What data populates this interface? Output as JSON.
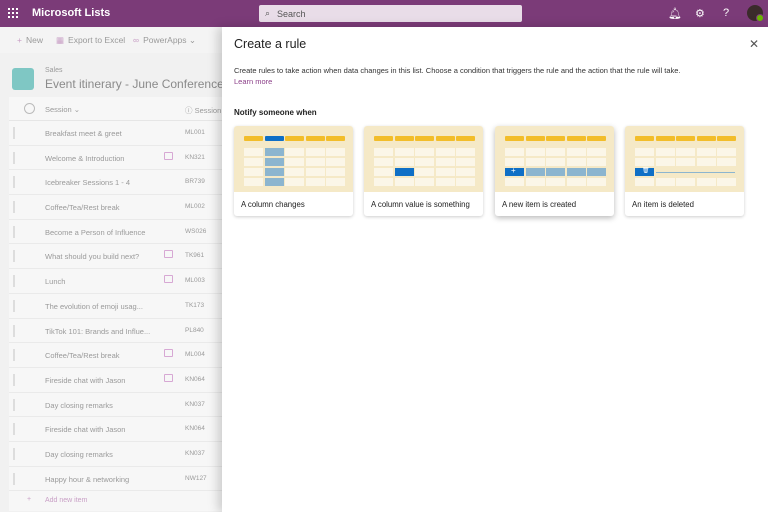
{
  "app": {
    "title": "Microsoft Lists",
    "search_placeholder": "Search",
    "icons": [
      "waffle-icon",
      "bell-icon",
      "gear-icon",
      "help-icon"
    ]
  },
  "commands": {
    "new": "New",
    "export": "Export to Excel",
    "powerapps": "PowerApps"
  },
  "list": {
    "site": "Sales",
    "title": "Event itinerary - June Conference",
    "col_session": "Session",
    "col_code": "Session c",
    "rows": [
      {
        "name": "Breakfast meet & greet",
        "code": "ML001",
        "comment": false
      },
      {
        "name": "Welcome & Introduction",
        "code": "KN321",
        "comment": true
      },
      {
        "name": "Icebreaker Sessions 1 - 4",
        "code": "BR739",
        "comment": false
      },
      {
        "name": "Coffee/Tea/Rest break",
        "code": "ML002",
        "comment": false
      },
      {
        "name": "Become a Person of Influence",
        "code": "WS026",
        "comment": false
      },
      {
        "name": "What should you build next?",
        "code": "TK961",
        "comment": true
      },
      {
        "name": "Lunch",
        "code": "ML003",
        "comment": true
      },
      {
        "name": "The evolution of emoji usag...",
        "code": "TK173",
        "comment": false
      },
      {
        "name": "TikTok 101: Brands and Influe...",
        "code": "PL840",
        "comment": false
      },
      {
        "name": "Coffee/Tea/Rest break",
        "code": "ML004",
        "comment": true
      },
      {
        "name": "Fireside chat with Jason",
        "code": "KN064",
        "comment": true
      },
      {
        "name": "Day closing remarks",
        "code": "KN037",
        "comment": false
      },
      {
        "name": "Fireside chat with Jason",
        "code": "KN064",
        "comment": false
      },
      {
        "name": "Day closing remarks",
        "code": "KN037",
        "comment": false
      },
      {
        "name": "Happy hour & networking",
        "code": "NW127",
        "comment": false
      }
    ],
    "add_new": "Add new item"
  },
  "panel": {
    "title": "Create a rule",
    "description": "Create rules to take action when data changes in this list. Choose a condition that triggers the rule and the action that the rule will take.",
    "learn_more": "Learn more",
    "section": "Notify someone when",
    "cards": [
      {
        "label": "A column changes",
        "kind": "column"
      },
      {
        "label": "A column value is something",
        "kind": "value"
      },
      {
        "label": "A new item is created",
        "kind": "new"
      },
      {
        "label": "An item is deleted",
        "kind": "delete"
      }
    ]
  },
  "colors": {
    "brand": "#7b3b78",
    "accent": "#0f6fc6",
    "header_yellow": "#f2bd2a"
  }
}
